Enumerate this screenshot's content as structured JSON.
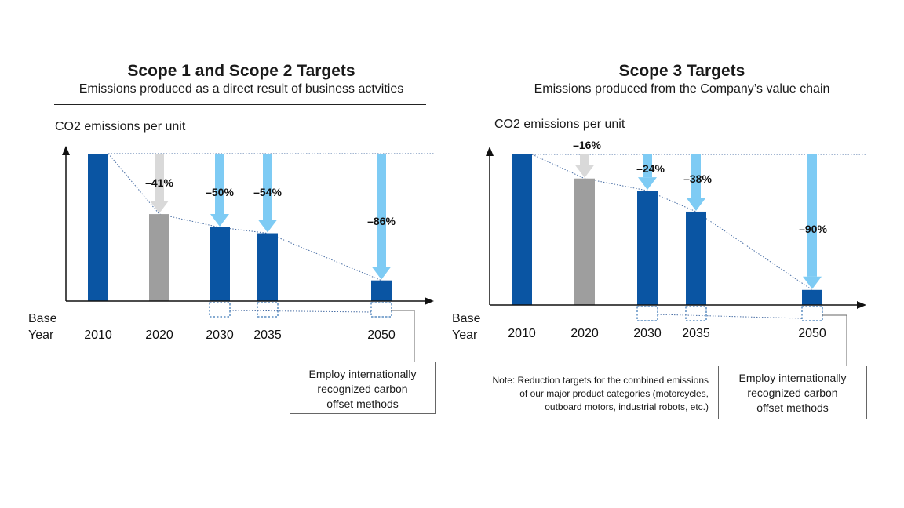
{
  "colors": {
    "bar_blue": "#0a55a3",
    "bar_gray": "#9e9e9e",
    "arrow_light_blue": "#7ecbf4",
    "arrow_light_gray": "#d9d9d9"
  },
  "panels": [
    {
      "title": "Scope 1 and Scope 2 Targets",
      "subtitle": "Emissions produced as a direct result of business actvities",
      "ylabel": "CO2 emissions per unit",
      "base_label_line1": "Base",
      "base_label_line2": "Year",
      "offset_box": [
        "Employ internationally",
        "recognized carbon",
        "offset methods"
      ]
    },
    {
      "title": "Scope 3 Targets",
      "subtitle": "Emissions produced from the Company’s value chain",
      "ylabel": "CO2 emissions per unit",
      "base_label_line1": "Base",
      "base_label_line2": "Year",
      "offset_box": [
        "Employ internationally",
        "recognized carbon",
        "offset methods"
      ],
      "note": [
        "Note: Reduction targets for the combined emissions",
        "of our major product categories (motorcycles,",
        "outboard motors, industrial robots, etc.)"
      ]
    }
  ],
  "chart_data": [
    {
      "type": "bar",
      "title": "Scope 1 and Scope 2 Targets",
      "ylabel": "CO2 emissions per unit",
      "categories": [
        "2010",
        "2020",
        "2030",
        "2035",
        "2050"
      ],
      "values": [
        100,
        59,
        50,
        46,
        14
      ],
      "reduction_labels": [
        "",
        "–41%",
        "–50%",
        "–54%",
        "–86%"
      ],
      "bar_kinds": [
        "actual",
        "actual",
        "target",
        "target",
        "target"
      ],
      "offset_marker_categories": [
        "2030",
        "2035",
        "2050"
      ],
      "ylim": [
        0,
        100
      ]
    },
    {
      "type": "bar",
      "title": "Scope 3 Targets",
      "ylabel": "CO2 emissions per unit",
      "categories": [
        "2010",
        "2020",
        "2030",
        "2035",
        "2050"
      ],
      "values": [
        100,
        84,
        76,
        62,
        10
      ],
      "reduction_labels": [
        "",
        "–16%",
        "–24%",
        "–38%",
        "–90%"
      ],
      "bar_kinds": [
        "actual",
        "actual",
        "target",
        "target",
        "target"
      ],
      "offset_marker_categories": [
        "2030",
        "2035",
        "2050"
      ],
      "ylim": [
        0,
        100
      ]
    }
  ]
}
